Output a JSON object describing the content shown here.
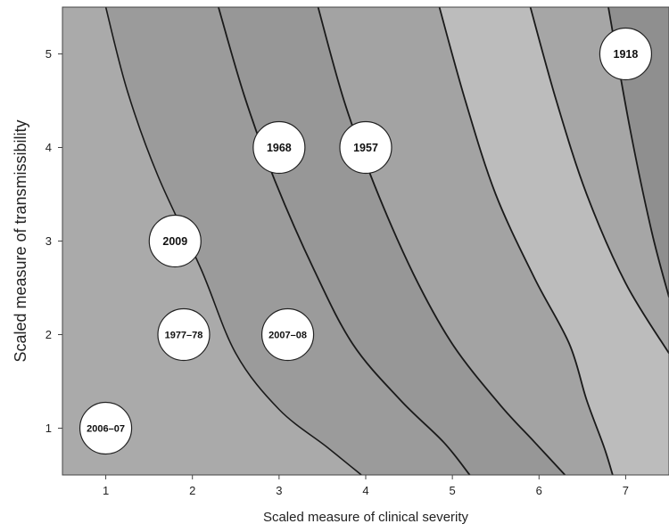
{
  "chart_data": {
    "type": "scatter",
    "title": "",
    "xlabel": "Scaled measure of clinical severity",
    "ylabel": "Scaled measure of transmissibility",
    "xlim": [
      0.5,
      7.5
    ],
    "ylim": [
      0.5,
      5.5
    ],
    "xticks": [
      1,
      2,
      3,
      4,
      5,
      6,
      7
    ],
    "yticks": [
      1,
      2,
      3,
      4,
      5
    ],
    "grid": false,
    "legend": "none",
    "colors": {
      "bubble_fill": "#ffffff",
      "bubble_stroke": "#222222",
      "contour_line": "#1a1a1a",
      "band_fills": [
        "#aaaaaa",
        "#9b9b9b",
        "#979797",
        "#a3a3a3",
        "#bcbcbc",
        "#a6a6a6",
        "#8f8f8f"
      ]
    },
    "points": [
      {
        "label": "1918",
        "x": 7.0,
        "y": 5.0
      },
      {
        "label": "1957",
        "x": 4.0,
        "y": 4.0
      },
      {
        "label": "1968",
        "x": 3.0,
        "y": 4.0
      },
      {
        "label": "2009",
        "x": 1.8,
        "y": 3.0
      },
      {
        "label": "1977–78",
        "x": 1.9,
        "y": 2.0
      },
      {
        "label": "2007–08",
        "x": 3.1,
        "y": 2.0
      },
      {
        "label": "2006–07",
        "x": 1.0,
        "y": 1.0
      }
    ],
    "contours": [
      [
        [
          1.0,
          5.5
        ],
        [
          1.25,
          4.6
        ],
        [
          1.6,
          3.7
        ],
        [
          2.1,
          2.7
        ],
        [
          2.5,
          1.8
        ],
        [
          3.0,
          1.2
        ],
        [
          3.55,
          0.8
        ],
        [
          3.95,
          0.5
        ]
      ],
      [
        [
          2.3,
          5.5
        ],
        [
          2.6,
          4.55
        ],
        [
          2.95,
          3.65
        ],
        [
          3.4,
          2.7
        ],
        [
          3.85,
          1.9
        ],
        [
          4.4,
          1.3
        ],
        [
          4.9,
          0.85
        ],
        [
          5.2,
          0.5
        ]
      ],
      [
        [
          3.45,
          5.5
        ],
        [
          3.75,
          4.5
        ],
        [
          4.1,
          3.6
        ],
        [
          4.55,
          2.65
        ],
        [
          5.0,
          1.9
        ],
        [
          5.55,
          1.25
        ],
        [
          5.95,
          0.85
        ],
        [
          6.3,
          0.5
        ]
      ],
      [
        [
          4.85,
          5.5
        ],
        [
          5.15,
          4.5
        ],
        [
          5.5,
          3.5
        ],
        [
          5.95,
          2.6
        ],
        [
          6.35,
          1.9
        ],
        [
          6.55,
          1.3
        ],
        [
          6.75,
          0.8
        ],
        [
          6.85,
          0.5
        ]
      ],
      [
        [
          5.9,
          5.5
        ],
        [
          6.2,
          4.5
        ],
        [
          6.55,
          3.5
        ],
        [
          7.0,
          2.55
        ],
        [
          7.5,
          1.8
        ]
      ],
      [
        [
          6.8,
          5.5
        ],
        [
          7.05,
          4.2
        ],
        [
          7.3,
          3.1
        ],
        [
          7.5,
          2.4
        ]
      ]
    ]
  }
}
